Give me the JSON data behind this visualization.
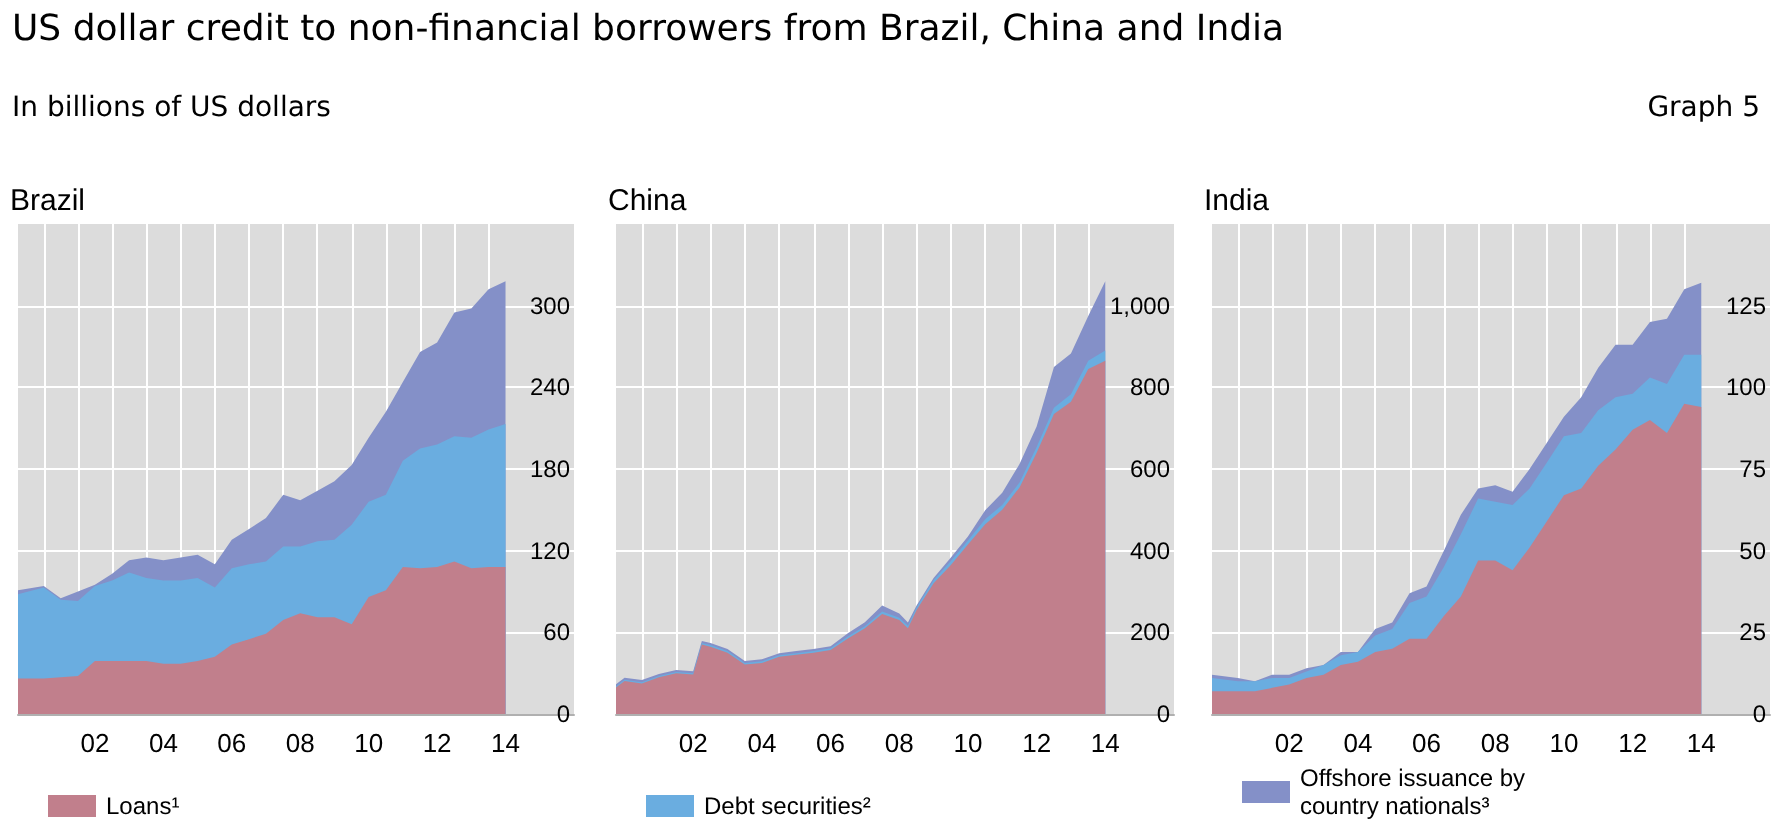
{
  "chart_data": [
    {
      "type": "area",
      "title": "Brazil",
      "annotations": [
        "US dollar credit to non-financial borrowers from Brazil, China and India",
        "In billions of US dollars",
        "Graph 5"
      ],
      "stacked": true,
      "grid": true,
      "legend": "bottom left",
      "x": [
        "2000-04",
        "2001-01",
        "2001-07",
        "2002-01",
        "2002-07",
        "2003-01",
        "2003-07",
        "2004-01",
        "2004-07",
        "2005-01",
        "2005-07",
        "2006-01",
        "2006-07",
        "2007-01",
        "2007-07",
        "2008-01",
        "2008-07",
        "2009-01",
        "2009-07",
        "2010-01",
        "2010-07",
        "2011-01",
        "2011-07",
        "2012-01",
        "2012-07",
        "2013-01",
        "2013-07",
        "2014-01",
        "2014-07"
      ],
      "xlim": [
        "2000-04",
        "2016-07"
      ],
      "xticks": [
        {
          "value": "2001-01",
          "label": null
        },
        {
          "value": "2002-01",
          "label": null
        },
        {
          "value": "2003-01",
          "label": null
        },
        {
          "value": "2004-01",
          "label": null
        },
        {
          "value": "2005-01",
          "label": null
        },
        {
          "value": "2006-01",
          "label": null
        },
        {
          "value": "2007-01",
          "label": null
        },
        {
          "value": "2008-01",
          "label": null
        },
        {
          "value": "2009-01",
          "label": null
        },
        {
          "value": "2010-01",
          "label": null
        },
        {
          "value": "2011-01",
          "label": null
        },
        {
          "value": "2012-01",
          "label": null
        },
        {
          "value": "2013-01",
          "label": null
        },
        {
          "value": "2014-01",
          "label": null
        },
        {
          "value": "2002-07",
          "label": "02"
        },
        {
          "value": "2004-07",
          "label": "04"
        },
        {
          "value": "2006-07",
          "label": "06"
        },
        {
          "value": "2008-07",
          "label": "08"
        },
        {
          "value": "2010-07",
          "label": "10"
        },
        {
          "value": "2012-07",
          "label": "12"
        },
        {
          "value": "2014-07",
          "label": "14"
        }
      ],
      "ylim": [
        0,
        360
      ],
      "yticks": [
        0,
        60,
        120,
        180,
        240,
        300
      ],
      "series": [
        {
          "name": "Loans¹",
          "color": "#c17f8c",
          "values": [
            26,
            26,
            27,
            28,
            39,
            39,
            39,
            39,
            37,
            37,
            39,
            42,
            51,
            55,
            59,
            69,
            74,
            71,
            71,
            66,
            86,
            91,
            108,
            107,
            108,
            112,
            107,
            108,
            108
          ]
        },
        {
          "color": "#6aade0",
          "values": [
            62,
            67,
            57,
            55,
            55,
            59,
            65,
            61,
            61,
            61,
            61,
            51,
            56,
            55,
            53,
            54,
            49,
            56,
            57,
            73,
            70,
            70,
            78,
            88,
            90,
            92,
            96,
            101,
            105
          ]
        },
        {
          "color": "#8490c8",
          "values": [
            3,
            1,
            1,
            7,
            1,
            5,
            9,
            15,
            15,
            17,
            17,
            17,
            21,
            26,
            32,
            38,
            34,
            37,
            43,
            44,
            47,
            61,
            58,
            71,
            75,
            91,
            95,
            103,
            105
          ]
        }
      ]
    },
    {
      "type": "area",
      "title": "China",
      "stacked": true,
      "grid": true,
      "legend": "bottom left",
      "x": [
        "2000-04",
        "2000-07",
        "2001-01",
        "2001-07",
        "2002-01",
        "2002-07",
        "2002-10",
        "2003-01",
        "2003-07",
        "2004-01",
        "2004-07",
        "2005-01",
        "2005-07",
        "2006-01",
        "2006-07",
        "2007-01",
        "2007-07",
        "2008-01",
        "2008-07",
        "2008-10",
        "2009-01",
        "2009-07",
        "2010-01",
        "2010-07",
        "2011-01",
        "2011-07",
        "2012-01",
        "2012-07",
        "2013-01",
        "2013-07",
        "2014-01",
        "2014-07"
      ],
      "xlim": [
        "2000-04",
        "2016-07"
      ],
      "xticks": [
        {
          "value": "2001-01",
          "label": null
        },
        {
          "value": "2002-01",
          "label": null
        },
        {
          "value": "2003-01",
          "label": null
        },
        {
          "value": "2004-01",
          "label": null
        },
        {
          "value": "2005-01",
          "label": null
        },
        {
          "value": "2006-01",
          "label": null
        },
        {
          "value": "2007-01",
          "label": null
        },
        {
          "value": "2008-01",
          "label": null
        },
        {
          "value": "2009-01",
          "label": null
        },
        {
          "value": "2010-01",
          "label": null
        },
        {
          "value": "2011-01",
          "label": null
        },
        {
          "value": "2012-01",
          "label": null
        },
        {
          "value": "2013-01",
          "label": null
        },
        {
          "value": "2014-01",
          "label": null
        },
        {
          "value": "2002-07",
          "label": "02"
        },
        {
          "value": "2004-07",
          "label": "04"
        },
        {
          "value": "2006-07",
          "label": "06"
        },
        {
          "value": "2008-07",
          "label": "08"
        },
        {
          "value": "2010-07",
          "label": "10"
        },
        {
          "value": "2012-07",
          "label": "12"
        },
        {
          "value": "2014-07",
          "label": "14"
        }
      ],
      "ylim": [
        0,
        1200
      ],
      "yticks": [
        0,
        200,
        400,
        600,
        800,
        {
          "value": 1000,
          "label": "1,000"
        }
      ],
      "series": [
        {
          "color": "#c17f8c",
          "values": [
            65,
            81,
            75,
            90,
            100,
            97,
            170,
            165,
            150,
            121,
            125,
            140,
            145,
            150,
            157,
            185,
            210,
            245,
            230,
            210,
            255,
            320,
            365,
            415,
            465,
            500,
            555,
            640,
            735,
            765,
            845,
            865
          ]
        },
        {
          "name": "Debt securities²",
          "color": "#6aade0",
          "values": [
            3,
            3,
            3,
            3,
            3,
            3,
            4,
            4,
            4,
            4,
            4,
            4,
            4,
            4,
            4,
            5,
            5,
            6,
            6,
            6,
            6,
            8,
            10,
            10,
            12,
            12,
            12,
            14,
            15,
            18,
            20,
            25
          ]
        },
        {
          "color": "#8490c8",
          "values": [
            5,
            5,
            5,
            5,
            5,
            5,
            5,
            5,
            5,
            5,
            5,
            5,
            5,
            5,
            5,
            8,
            10,
            15,
            10,
            8,
            5,
            5,
            8,
            10,
            22,
            30,
            45,
            50,
            100,
            100,
            110,
            170
          ]
        }
      ]
    },
    {
      "type": "area",
      "title": "India",
      "stacked": true,
      "grid": true,
      "legend": "bottom left",
      "x": [
        "2000-04",
        "2001-01",
        "2001-07",
        "2002-01",
        "2002-07",
        "2003-01",
        "2003-07",
        "2004-01",
        "2004-07",
        "2005-01",
        "2005-07",
        "2006-01",
        "2006-07",
        "2007-01",
        "2007-07",
        "2008-01",
        "2008-07",
        "2009-01",
        "2009-07",
        "2010-01",
        "2010-07",
        "2011-01",
        "2011-07",
        "2012-01",
        "2012-07",
        "2013-01",
        "2013-07",
        "2014-01",
        "2014-07"
      ],
      "xlim": [
        "2000-04",
        "2016-07"
      ],
      "xticks": [
        {
          "value": "2001-01",
          "label": null
        },
        {
          "value": "2002-01",
          "label": null
        },
        {
          "value": "2003-01",
          "label": null
        },
        {
          "value": "2004-01",
          "label": null
        },
        {
          "value": "2005-01",
          "label": null
        },
        {
          "value": "2006-01",
          "label": null
        },
        {
          "value": "2007-01",
          "label": null
        },
        {
          "value": "2008-01",
          "label": null
        },
        {
          "value": "2009-01",
          "label": null
        },
        {
          "value": "2010-01",
          "label": null
        },
        {
          "value": "2011-01",
          "label": null
        },
        {
          "value": "2012-01",
          "label": null
        },
        {
          "value": "2013-01",
          "label": null
        },
        {
          "value": "2014-01",
          "label": null
        },
        {
          "value": "2002-07",
          "label": "02"
        },
        {
          "value": "2004-07",
          "label": "04"
        },
        {
          "value": "2006-07",
          "label": "06"
        },
        {
          "value": "2008-07",
          "label": "08"
        },
        {
          "value": "2010-07",
          "label": "10"
        },
        {
          "value": "2012-07",
          "label": "12"
        },
        {
          "value": "2014-07",
          "label": "14"
        }
      ],
      "ylim": [
        0,
        150
      ],
      "yticks": [
        0,
        25,
        50,
        75,
        100,
        125
      ],
      "series": [
        {
          "color": "#c17f8c",
          "values": [
            7,
            7,
            7,
            8,
            9,
            11,
            12,
            15,
            16,
            19,
            20,
            23,
            23,
            30,
            36,
            47,
            47,
            44,
            51,
            59,
            67,
            69,
            76,
            81,
            87,
            90,
            86,
            95,
            94
          ]
        },
        {
          "color": "#6aade0",
          "values": [
            4,
            3,
            3,
            3,
            2,
            2,
            3,
            3,
            3,
            5,
            6,
            11,
            13,
            15,
            19,
            19,
            18,
            20,
            18,
            18,
            18,
            17,
            17,
            16,
            11,
            13,
            15,
            15,
            16
          ]
        },
        {
          "name": "Offshore issuance by country nationals³",
          "color": "#8490c8",
          "values": [
            1,
            1,
            0,
            1,
            1,
            1,
            0,
            1,
            0,
            2,
            2,
            3,
            3,
            5,
            6,
            3,
            5,
            4,
            6,
            6,
            6,
            11,
            13,
            16,
            15,
            17,
            20,
            20,
            22
          ]
        }
      ]
    }
  ]
}
